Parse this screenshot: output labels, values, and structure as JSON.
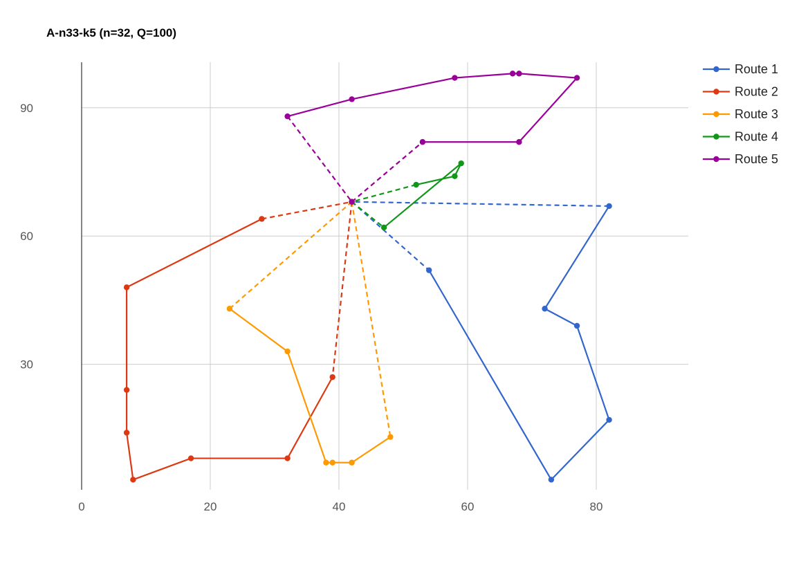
{
  "chart_data": {
    "type": "line",
    "title": "A-n33-k5 (n=32, Q=100)",
    "xlabel": "",
    "ylabel": "",
    "xlim": [
      0,
      95
    ],
    "ylim": [
      2,
      102
    ],
    "x_ticks": [
      0,
      20,
      40,
      60,
      80
    ],
    "y_ticks": [
      30,
      60,
      90
    ],
    "grid": true,
    "legend_position": "right",
    "depot": [
      42,
      68
    ],
    "series": [
      {
        "name": "Route 1",
        "color": "#3366cc",
        "points": [
          [
            42,
            68
          ],
          [
            54,
            52
          ],
          [
            73,
            3
          ],
          [
            82,
            17
          ],
          [
            77,
            39
          ],
          [
            72,
            43
          ],
          [
            82,
            67
          ],
          [
            42,
            68
          ]
        ]
      },
      {
        "name": "Route 2",
        "color": "#dc3912",
        "points": [
          [
            42,
            68
          ],
          [
            39,
            27
          ],
          [
            32,
            8
          ],
          [
            17,
            8
          ],
          [
            8,
            3
          ],
          [
            7,
            14
          ],
          [
            7,
            24
          ],
          [
            7,
            48
          ],
          [
            28,
            64
          ],
          [
            42,
            68
          ]
        ]
      },
      {
        "name": "Route 3",
        "color": "#ff9900",
        "points": [
          [
            42,
            68
          ],
          [
            48,
            13
          ],
          [
            42,
            7
          ],
          [
            39,
            7
          ],
          [
            38,
            7
          ],
          [
            32,
            33
          ],
          [
            23,
            43
          ],
          [
            42,
            68
          ]
        ]
      },
      {
        "name": "Route 4",
        "color": "#109618",
        "points": [
          [
            42,
            68
          ],
          [
            47,
            62
          ],
          [
            59,
            77
          ],
          [
            58,
            74
          ],
          [
            52,
            72
          ],
          [
            42,
            68
          ]
        ]
      },
      {
        "name": "Route 5",
        "color": "#990099",
        "points": [
          [
            42,
            68
          ],
          [
            53,
            82
          ],
          [
            68,
            82
          ],
          [
            77,
            97
          ],
          [
            68,
            98
          ],
          [
            67,
            98
          ],
          [
            58,
            97
          ],
          [
            42,
            92
          ],
          [
            32,
            88
          ],
          [
            42,
            68
          ]
        ]
      }
    ]
  }
}
